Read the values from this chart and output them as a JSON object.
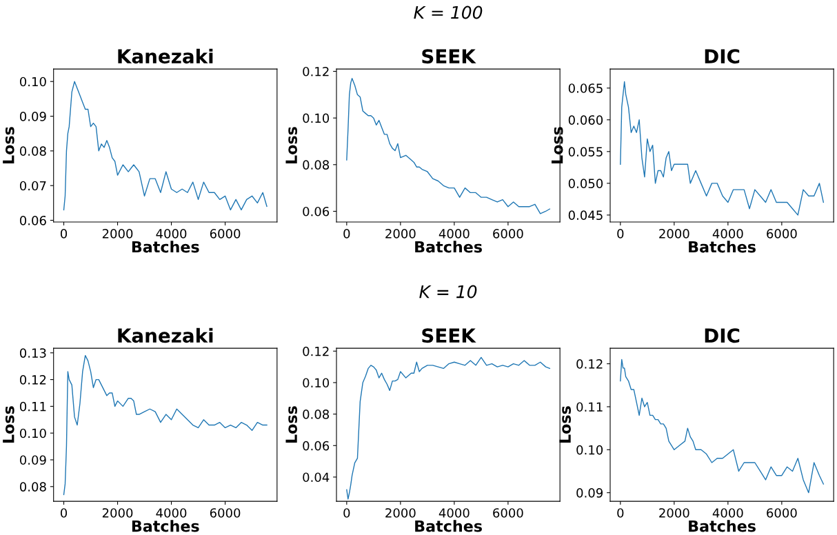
{
  "chart_data": [
    {
      "type": "line",
      "title": "Kanezaki",
      "xlabel": "Batches",
      "ylabel": "Loss",
      "xlim": [
        -380,
        7930
      ],
      "xticks": [
        0,
        2000,
        4000,
        6000
      ],
      "ylim": [
        0.0595,
        0.1036
      ],
      "yticks": [
        0.06,
        0.07,
        0.08,
        0.09,
        {
          "value": 0.1,
          "label": "0.10"
        }
      ],
      "x": [
        0,
        50,
        100,
        150,
        200,
        300,
        400,
        500,
        600,
        700,
        800,
        900,
        1000,
        1100,
        1200,
        1300,
        1400,
        1500,
        1600,
        1700,
        1800,
        1900,
        2000,
        2200,
        2400,
        2500,
        2600,
        2700,
        2800,
        3000,
        3200,
        3400,
        3600,
        3800,
        4000,
        4200,
        4400,
        4600,
        4800,
        5000,
        5200,
        5400,
        5600,
        5800,
        6000,
        6200,
        6400,
        6600,
        6800,
        7000,
        7200,
        7400,
        7550
      ],
      "series": [
        {
          "color": "#1f77b4",
          "values": [
            0.063,
            0.067,
            0.08,
            0.085,
            0.087,
            0.097,
            0.1,
            0.098,
            0.096,
            0.094,
            0.092,
            0.092,
            0.087,
            0.088,
            0.087,
            0.08,
            0.082,
            0.081,
            0.083,
            0.081,
            0.078,
            0.077,
            0.073,
            0.076,
            0.074,
            0.075,
            0.076,
            0.075,
            0.074,
            0.067,
            0.072,
            0.072,
            0.068,
            0.074,
            0.069,
            0.068,
            0.069,
            0.068,
            0.071,
            0.066,
            0.071,
            0.068,
            0.068,
            0.066,
            0.067,
            0.063,
            0.066,
            0.063,
            0.066,
            0.067,
            0.065,
            0.068,
            0.064
          ]
        }
      ]
    },
    {
      "type": "line",
      "title": "SEEK",
      "xlabel": "Batches",
      "ylabel": "Loss",
      "annotations": [
        "K = 100"
      ],
      "xlim": [
        -380,
        7930
      ],
      "xticks": [
        0,
        2000,
        4000,
        6000
      ],
      "ylim": [
        0.0554,
        0.121
      ],
      "yticks": [
        0.06,
        0.08,
        {
          "value": 0.1,
          "label": "0.10"
        },
        0.12
      ],
      "x": [
        0,
        50,
        100,
        150,
        200,
        300,
        400,
        500,
        600,
        700,
        800,
        900,
        1000,
        1100,
        1200,
        1300,
        1400,
        1500,
        1600,
        1700,
        1800,
        1900,
        2000,
        2200,
        2400,
        2500,
        2600,
        2700,
        2800,
        3000,
        3200,
        3400,
        3600,
        3800,
        4000,
        4200,
        4400,
        4600,
        4800,
        5000,
        5200,
        5400,
        5600,
        5800,
        6000,
        6200,
        6400,
        6600,
        6800,
        7000,
        7200,
        7400,
        7550
      ],
      "series": [
        {
          "color": "#1f77b4",
          "values": [
            0.082,
            0.095,
            0.11,
            0.115,
            0.117,
            0.114,
            0.11,
            0.109,
            0.103,
            0.102,
            0.101,
            0.101,
            0.1,
            0.097,
            0.099,
            0.096,
            0.093,
            0.093,
            0.089,
            0.087,
            0.086,
            0.089,
            0.083,
            0.084,
            0.082,
            0.081,
            0.079,
            0.079,
            0.078,
            0.077,
            0.074,
            0.073,
            0.071,
            0.07,
            0.07,
            0.066,
            0.07,
            0.068,
            0.068,
            0.066,
            0.066,
            0.065,
            0.064,
            0.065,
            0.062,
            0.064,
            0.062,
            0.062,
            0.062,
            0.063,
            0.059,
            0.06,
            0.061
          ]
        }
      ]
    },
    {
      "type": "line",
      "title": "DIC",
      "xlabel": "Batches",
      "ylabel": "Loss",
      "xlim": [
        -380,
        7930
      ],
      "xticks": [
        0,
        2000,
        4000,
        6000
      ],
      "ylim": [
        0.0439,
        0.068
      ],
      "yticks": [
        0.045,
        {
          "value": 0.05,
          "label": "0.050"
        },
        0.055,
        {
          "value": 0.06,
          "label": "0.060"
        },
        0.065
      ],
      "x": [
        0,
        50,
        100,
        150,
        200,
        300,
        400,
        500,
        600,
        700,
        800,
        900,
        1000,
        1100,
        1200,
        1300,
        1400,
        1500,
        1600,
        1700,
        1800,
        1900,
        2000,
        2200,
        2400,
        2500,
        2600,
        2700,
        2800,
        3000,
        3200,
        3400,
        3600,
        3800,
        4000,
        4200,
        4400,
        4600,
        4800,
        5000,
        5200,
        5400,
        5600,
        5800,
        6000,
        6200,
        6400,
        6600,
        6800,
        7000,
        7200,
        7400,
        7550
      ],
      "series": [
        {
          "color": "#1f77b4",
          "values": [
            0.053,
            0.062,
            0.064,
            0.066,
            0.064,
            0.062,
            0.058,
            0.059,
            0.058,
            0.06,
            0.054,
            0.051,
            0.057,
            0.055,
            0.056,
            0.05,
            0.052,
            0.052,
            0.051,
            0.054,
            0.055,
            0.052,
            0.053,
            0.053,
            0.053,
            0.053,
            0.05,
            0.051,
            0.052,
            0.05,
            0.048,
            0.05,
            0.05,
            0.048,
            0.047,
            0.049,
            0.049,
            0.049,
            0.046,
            0.049,
            0.048,
            0.047,
            0.049,
            0.047,
            0.047,
            0.047,
            0.046,
            0.045,
            0.049,
            0.048,
            0.048,
            0.05,
            0.047
          ]
        }
      ]
    },
    {
      "type": "line",
      "title": "Kanezaki",
      "xlabel": "Batches",
      "ylabel": "Loss",
      "xlim": [
        -380,
        7930
      ],
      "xticks": [
        0,
        2000,
        4000,
        6000
      ],
      "ylim": [
        0.0745,
        0.1317
      ],
      "yticks": [
        0.08,
        0.09,
        {
          "value": 0.1,
          "label": "0.10"
        },
        0.11,
        0.12,
        0.13
      ],
      "x": [
        0,
        50,
        100,
        150,
        200,
        300,
        400,
        500,
        600,
        700,
        800,
        900,
        1000,
        1100,
        1200,
        1300,
        1400,
        1500,
        1600,
        1700,
        1800,
        1900,
        2000,
        2200,
        2400,
        2500,
        2600,
        2700,
        2800,
        3000,
        3200,
        3400,
        3600,
        3800,
        4000,
        4200,
        4400,
        4600,
        4800,
        5000,
        5200,
        5400,
        5600,
        5800,
        6000,
        6200,
        6400,
        6600,
        6800,
        7000,
        7200,
        7400,
        7550
      ],
      "series": [
        {
          "color": "#1f77b4",
          "values": [
            0.077,
            0.081,
            0.095,
            0.123,
            0.12,
            0.118,
            0.106,
            0.103,
            0.111,
            0.123,
            0.129,
            0.127,
            0.123,
            0.117,
            0.12,
            0.12,
            0.118,
            0.116,
            0.114,
            0.115,
            0.115,
            0.11,
            0.112,
            0.11,
            0.113,
            0.113,
            0.112,
            0.107,
            0.107,
            0.108,
            0.109,
            0.108,
            0.104,
            0.107,
            0.105,
            0.109,
            0.107,
            0.105,
            0.103,
            0.102,
            0.105,
            0.103,
            0.103,
            0.104,
            0.102,
            0.103,
            0.102,
            0.104,
            0.103,
            0.101,
            0.104,
            0.103,
            0.103
          ]
        }
      ]
    },
    {
      "type": "line",
      "title": "SEEK",
      "xlabel": "Batches",
      "ylabel": "Loss",
      "annotations": [
        "K = 10"
      ],
      "xlim": [
        -380,
        7930
      ],
      "xticks": [
        0,
        2000,
        4000,
        6000
      ],
      "ylim": [
        0.0246,
        0.1218
      ],
      "yticks": [
        0.04,
        0.06,
        0.08,
        {
          "value": 0.1,
          "label": "0.10"
        },
        0.12
      ],
      "x": [
        0,
        50,
        100,
        150,
        200,
        300,
        400,
        500,
        600,
        700,
        800,
        900,
        1000,
        1100,
        1200,
        1300,
        1400,
        1500,
        1600,
        1700,
        1800,
        1900,
        2000,
        2200,
        2400,
        2500,
        2600,
        2700,
        2800,
        3000,
        3200,
        3400,
        3600,
        3800,
        4000,
        4200,
        4400,
        4600,
        4800,
        5000,
        5200,
        5400,
        5600,
        5800,
        6000,
        6200,
        6400,
        6600,
        6800,
        7000,
        7200,
        7400,
        7550
      ],
      "series": [
        {
          "color": "#1f77b4",
          "values": [
            0.032,
            0.026,
            0.03,
            0.035,
            0.041,
            0.049,
            0.052,
            0.088,
            0.1,
            0.104,
            0.109,
            0.111,
            0.11,
            0.108,
            0.103,
            0.106,
            0.102,
            0.099,
            0.095,
            0.101,
            0.101,
            0.102,
            0.107,
            0.103,
            0.106,
            0.106,
            0.113,
            0.107,
            0.109,
            0.111,
            0.111,
            0.11,
            0.109,
            0.112,
            0.113,
            0.112,
            0.111,
            0.114,
            0.111,
            0.116,
            0.111,
            0.112,
            0.11,
            0.111,
            0.11,
            0.112,
            0.111,
            0.114,
            0.111,
            0.111,
            0.113,
            0.11,
            0.109
          ]
        }
      ]
    },
    {
      "type": "line",
      "title": "DIC",
      "xlabel": "Batches",
      "ylabel": "Loss",
      "xlim": [
        -380,
        7930
      ],
      "xticks": [
        0,
        2000,
        4000,
        6000
      ],
      "ylim": [
        0.088,
        0.1236
      ],
      "yticks": [
        0.09,
        {
          "value": 0.1,
          "label": "0.10"
        },
        0.11,
        0.12
      ],
      "x": [
        0,
        50,
        100,
        150,
        200,
        300,
        400,
        500,
        600,
        700,
        800,
        900,
        1000,
        1100,
        1200,
        1300,
        1400,
        1500,
        1600,
        1700,
        1800,
        1900,
        2000,
        2200,
        2400,
        2500,
        2600,
        2700,
        2800,
        3000,
        3200,
        3400,
        3600,
        3800,
        4000,
        4200,
        4400,
        4600,
        4800,
        5000,
        5200,
        5400,
        5600,
        5800,
        6000,
        6200,
        6400,
        6600,
        6800,
        7000,
        7200,
        7400,
        7550
      ],
      "series": [
        {
          "color": "#1f77b4",
          "values": [
            0.116,
            0.121,
            0.119,
            0.119,
            0.117,
            0.116,
            0.114,
            0.114,
            0.111,
            0.108,
            0.112,
            0.11,
            0.111,
            0.108,
            0.108,
            0.107,
            0.107,
            0.106,
            0.106,
            0.105,
            0.102,
            0.101,
            0.1,
            0.101,
            0.102,
            0.105,
            0.103,
            0.102,
            0.1,
            0.1,
            0.099,
            0.097,
            0.098,
            0.098,
            0.099,
            0.1,
            0.095,
            0.097,
            0.097,
            0.097,
            0.095,
            0.093,
            0.096,
            0.094,
            0.094,
            0.096,
            0.095,
            0.098,
            0.093,
            0.09,
            0.097,
            0.094,
            0.092
          ]
        }
      ]
    }
  ]
}
